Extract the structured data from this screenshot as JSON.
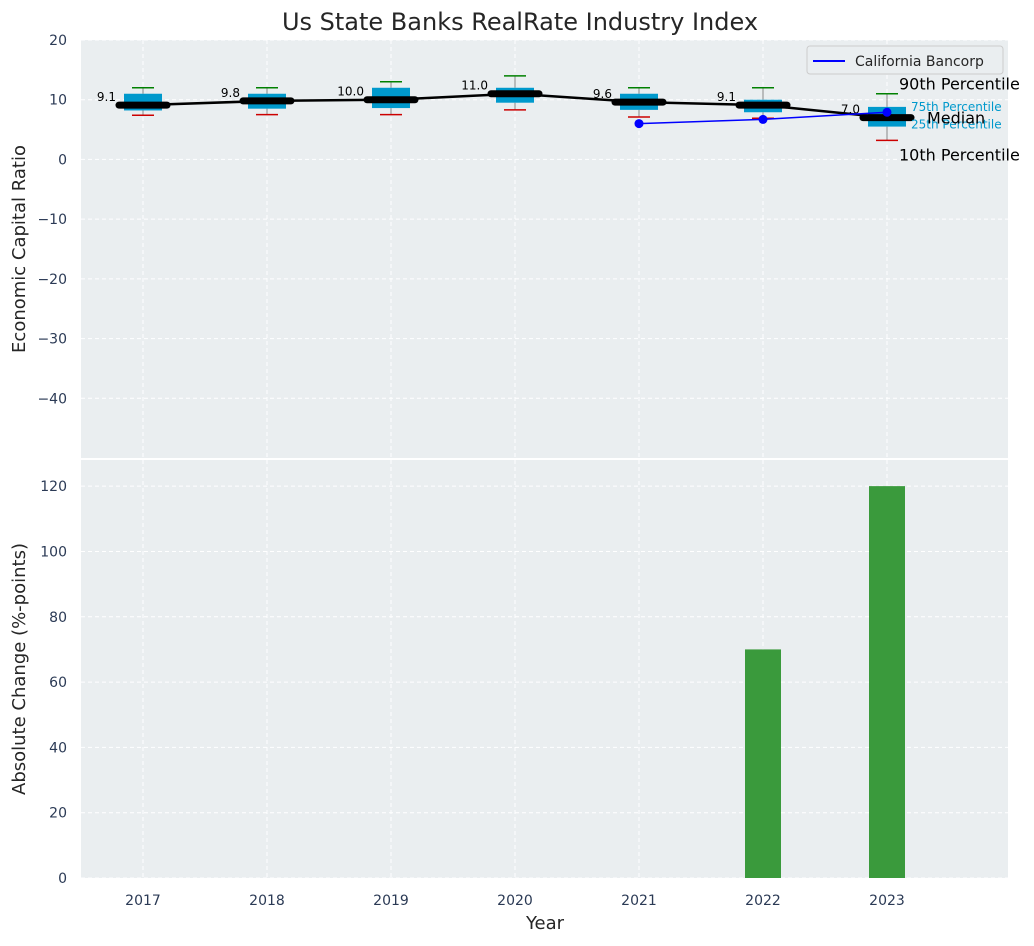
{
  "chart_data": [
    {
      "type": "box",
      "title": "Us State Banks RealRate Industry Index",
      "ylabel": "Economic Capital Ratio",
      "xlabel": "",
      "ylim": [
        -50,
        20
      ],
      "yticks": [
        20,
        10,
        0,
        -10,
        -20,
        -30,
        -40
      ],
      "grid": true,
      "legend": {
        "position": "top-right",
        "entries": [
          "California Bancorp"
        ]
      },
      "categories": [
        "2017",
        "2018",
        "2019",
        "2020",
        "2021",
        "2022",
        "2023"
      ],
      "p10": [
        7.4,
        7.5,
        7.5,
        8.3,
        7.1,
        6.9,
        3.2
      ],
      "p25": [
        8.2,
        8.5,
        8.6,
        9.5,
        8.3,
        7.9,
        5.5
      ],
      "median": [
        9.1,
        9.8,
        10.0,
        11.0,
        9.6,
        9.1,
        7.0
      ],
      "p75": [
        11.0,
        11.0,
        12.0,
        12.0,
        11.0,
        10.0,
        8.8
      ],
      "p90": [
        12.0,
        12.0,
        13.0,
        14.0,
        12.0,
        12.0,
        11.0
      ],
      "median_labels": [
        "9.1",
        "9.8",
        "10.0",
        "11.0",
        "9.6",
        "9.1",
        "7.0"
      ],
      "series": [
        {
          "name": "California Bancorp",
          "x": [
            "2021",
            "2022",
            "2023"
          ],
          "values": [
            6.0,
            6.7,
            7.9
          ],
          "color": "#0000ff"
        }
      ],
      "annotations": {
        "p90": "90th Percentile",
        "p75": "75th Percentile",
        "median": "Median",
        "p25": "25th Percentile",
        "p10": "10th Percentile"
      },
      "colors": {
        "box": "#0099cc",
        "median": "#000000",
        "whisker_high": "#008000",
        "whisker_low": "#cc0000",
        "plot_bg": "#eaeef0"
      }
    },
    {
      "type": "bar",
      "ylabel": "Absolute Change (%-points)",
      "xlabel": "Year",
      "ylim": [
        0,
        128
      ],
      "yticks": [
        0,
        20,
        40,
        60,
        80,
        100,
        120
      ],
      "grid": true,
      "categories": [
        "2017",
        "2018",
        "2019",
        "2020",
        "2021",
        "2022",
        "2023"
      ],
      "values": [
        null,
        null,
        null,
        null,
        null,
        70,
        120
      ],
      "color": "#3a9a3c"
    }
  ]
}
